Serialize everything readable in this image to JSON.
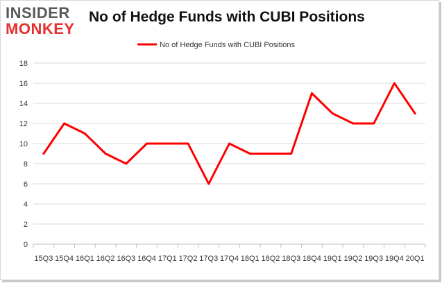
{
  "logo": {
    "line1": "INSIDER",
    "line2": "MONKEY",
    "colors": {
      "line1": "#595959",
      "line2": "#e4312d"
    }
  },
  "chart_data": {
    "type": "line",
    "title": "No of Hedge Funds with CUBI Positions",
    "xlabel": "",
    "ylabel": "",
    "categories": [
      "15Q3",
      "15Q4",
      "16Q1",
      "16Q2",
      "16Q3",
      "16Q4",
      "17Q1",
      "17Q2",
      "17Q3",
      "17Q4",
      "18Q1",
      "18Q2",
      "18Q3",
      "18Q4",
      "19Q1",
      "19Q2",
      "19Q3",
      "19Q4",
      "20Q1"
    ],
    "series": [
      {
        "name": "No of Hedge Funds with CUBI Positions",
        "color": "#ff0000",
        "values": [
          9,
          12,
          11,
          9,
          8,
          10,
          10,
          10,
          6,
          10,
          9,
          9,
          9,
          15,
          13,
          12,
          12,
          16,
          13
        ]
      }
    ],
    "ylim": [
      0,
      18
    ],
    "yticks": [
      0,
      2,
      4,
      6,
      8,
      10,
      12,
      14,
      16,
      18
    ],
    "grid": true,
    "legend": "top-center"
  }
}
